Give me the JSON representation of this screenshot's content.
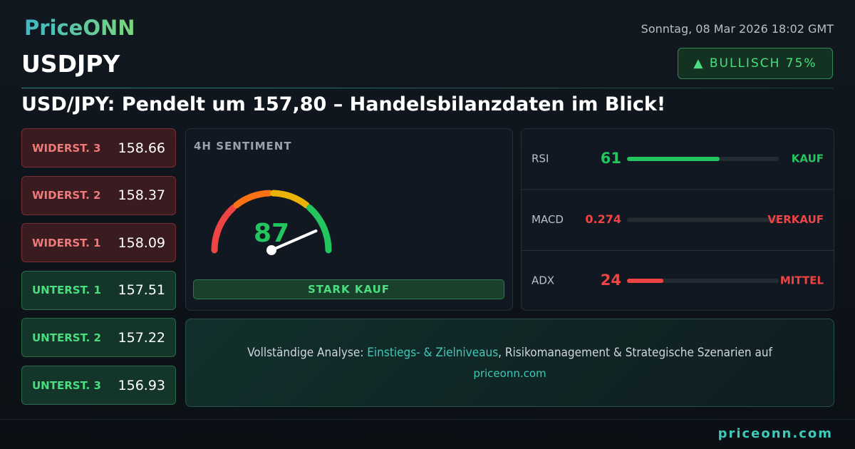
{
  "header": {
    "logo": "PriceONN",
    "date": "Sonntag, 08 Mar 2026 18:02 GMT",
    "symbol": "USDJPY",
    "badge": "▲ BULLISCH 75%",
    "headline": "USD/JPY: Pendelt um 157,80 – Handelsbilanzdaten im Blick!"
  },
  "levels": [
    {
      "label": "WIDERST. 3",
      "value": "158.66",
      "color": "#f07a7a"
    },
    {
      "label": "WIDERST. 2",
      "value": "158.37",
      "color": "#f07a7a"
    },
    {
      "label": "WIDERST. 1",
      "value": "158.09",
      "color": "#f07a7a"
    },
    {
      "label": "UNTERST. 1",
      "value": "157.51",
      "color": "#4ade80"
    },
    {
      "label": "UNTERST. 2",
      "value": "157.22",
      "color": "#4ade80"
    },
    {
      "label": "UNTERST. 3",
      "value": "156.93",
      "color": "#4ade80"
    }
  ],
  "sentiment": {
    "title": "4H SENTIMENT",
    "value": 87,
    "range": [
      0,
      100
    ],
    "verdict": "STARK KAUF"
  },
  "indicators": [
    {
      "name": "RSI",
      "value": 61,
      "signal": "KAUF",
      "color": "#22c55e",
      "range": [
        0,
        100
      ]
    },
    {
      "name": "MACD",
      "value": 0.274,
      "signal": "VERKAUF",
      "color": "#ef4444"
    },
    {
      "name": "ADX",
      "value": 24,
      "signal": "MITTEL",
      "color": "#ef4444",
      "range": [
        0,
        100
      ]
    }
  ],
  "cta": {
    "before": "Vollständige Analyse:",
    "highlight": "Einstiegs- & Zielniveaus",
    "after": ", Risikomanagement & Strategische Szenarien auf",
    "link": "priceonn.com"
  },
  "footer": "priceonn.com"
}
